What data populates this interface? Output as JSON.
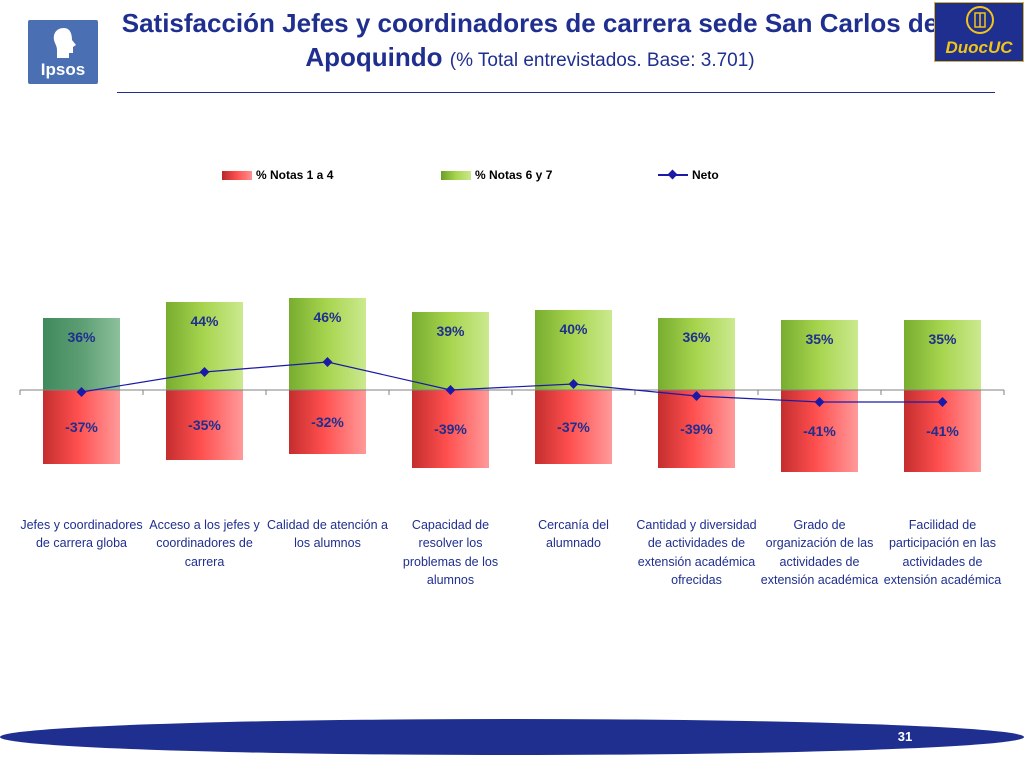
{
  "header": {
    "title_main": "Satisfacción Jefes y coordinadores de carrera sede San Carlos de Apoquindo",
    "title_sub": "(% Total entrevistados. Base: 3.701)",
    "logo_left": "Ipsos",
    "logo_right": "DuocUC"
  },
  "footer": {
    "page_number": "31"
  },
  "colors": {
    "title": "#1f2f8f",
    "red_series": "#ff4f4f",
    "green_series": "#a8d54f",
    "first_green": "#5d9e73",
    "line": "#1a1aa6"
  },
  "chart_data": {
    "type": "bar",
    "title": "",
    "categories": [
      "Jefes y coordinadores de carrera globa",
      "Acceso a los jefes y coordinadores de carrera",
      "Calidad de atención a los alumnos",
      "Capacidad de resolver los problemas de los alumnos",
      "Cercanía del alumnado",
      "Cantidad y diversidad de actividades de extensión académica ofrecidas",
      "Grado de organización de las actividades de extensión académica",
      "Facilidad de participación en las actividades de extensión académica"
    ],
    "series": [
      {
        "name": "% Notas 1 a 4",
        "values": [
          -37,
          -35,
          -32,
          -39,
          -37,
          -39,
          -41,
          -41
        ],
        "labels": [
          "-37%",
          "-35%",
          "-32%",
          "-39%",
          "-37%",
          "-39%",
          "-41%",
          "-41%"
        ]
      },
      {
        "name": "% Notas 6 y 7",
        "values": [
          36,
          44,
          46,
          39,
          40,
          36,
          35,
          35
        ],
        "labels": [
          "36%",
          "44%",
          "46%",
          "39%",
          "40%",
          "36%",
          "35%",
          "35%"
        ]
      },
      {
        "name": "Neto",
        "type": "line",
        "values": [
          -1,
          9,
          14,
          0,
          3,
          -3,
          -6,
          -6
        ]
      }
    ],
    "legend_position": "top-center",
    "xlabel": "",
    "ylabel": ""
  }
}
